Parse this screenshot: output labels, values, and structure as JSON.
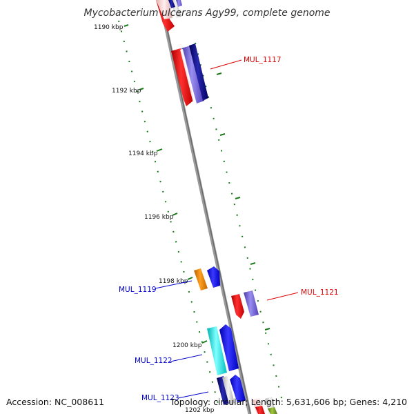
{
  "title": "Mycobacterium ulcerans Agy99, complete genome",
  "footer": {
    "accession": "Accession: NC_008611",
    "topology": "Topology: circular; Length: 5,631,606 bp; Genes: 4,210"
  },
  "ticks": [
    {
      "label": "1190 kbp"
    },
    {
      "label": "1192 kbp"
    },
    {
      "label": "1194 kbp"
    },
    {
      "label": "1196 kbp"
    },
    {
      "label": "1198 kbp"
    },
    {
      "label": "1200 kbp"
    },
    {
      "label": "1202 kbp"
    }
  ],
  "gene_labels": [
    {
      "name": "MUL_1117",
      "color": "#dd0000"
    },
    {
      "name": "MUL_1121",
      "color": "#dd0000"
    },
    {
      "name": "MUL_1119",
      "color": "#0000cc"
    },
    {
      "name": "MUL_1122",
      "color": "#0000cc"
    },
    {
      "name": "MUL_1123",
      "color": "#0000cc"
    }
  ],
  "colors": {
    "backbone": "#8a8a8a",
    "tick_green": "#1a7a1a",
    "gene_red": "#ff1a1a",
    "gene_violet": "#7060d0",
    "gene_navy": "#10108a",
    "gene_blue": "#1414ff",
    "gene_orange": "#ee8800",
    "gene_cyan": "#00e5e5",
    "gene_olive": "#7aa020"
  }
}
